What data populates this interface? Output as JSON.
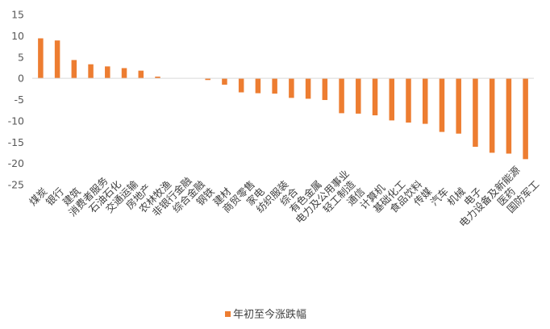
{
  "chart_data": {
    "type": "bar",
    "categories": [
      "煤炭",
      "银行",
      "建筑",
      "消费者服务",
      "石油石化",
      "交通运输",
      "房地产",
      "农林牧渔",
      "非银行金融",
      "综合金融",
      "钢铁",
      "建材",
      "商贸零售",
      "家电",
      "纺织服装",
      "综合",
      "有色金属",
      "电力及公用事业",
      "轻工制造",
      "通信",
      "计算机",
      "基础化工",
      "食品饮料",
      "传媒",
      "汽车",
      "机械",
      "电子",
      "电力设备及新能源",
      "医药",
      "国防军工"
    ],
    "series": [
      {
        "name": "年初至今涨跌幅",
        "values": [
          9.4,
          8.9,
          4.3,
          3.3,
          2.8,
          2.4,
          1.8,
          0.4,
          0.0,
          0.0,
          -0.4,
          -1.5,
          -3.3,
          -3.5,
          -3.6,
          -4.6,
          -4.8,
          -5.1,
          -8.2,
          -8.3,
          -8.7,
          -9.9,
          -10.4,
          -10.7,
          -12.6,
          -13.0,
          -16.1,
          -17.5,
          -17.7,
          -19.0
        ]
      }
    ],
    "y_ticks": [
      "15",
      "10",
      "5",
      "0",
      "-5",
      "-10",
      "-15",
      "-20",
      "-25"
    ],
    "ylim": [
      -25,
      15
    ],
    "legend_position": "bottom",
    "grid": false,
    "bar_color": "#ED7D31"
  }
}
